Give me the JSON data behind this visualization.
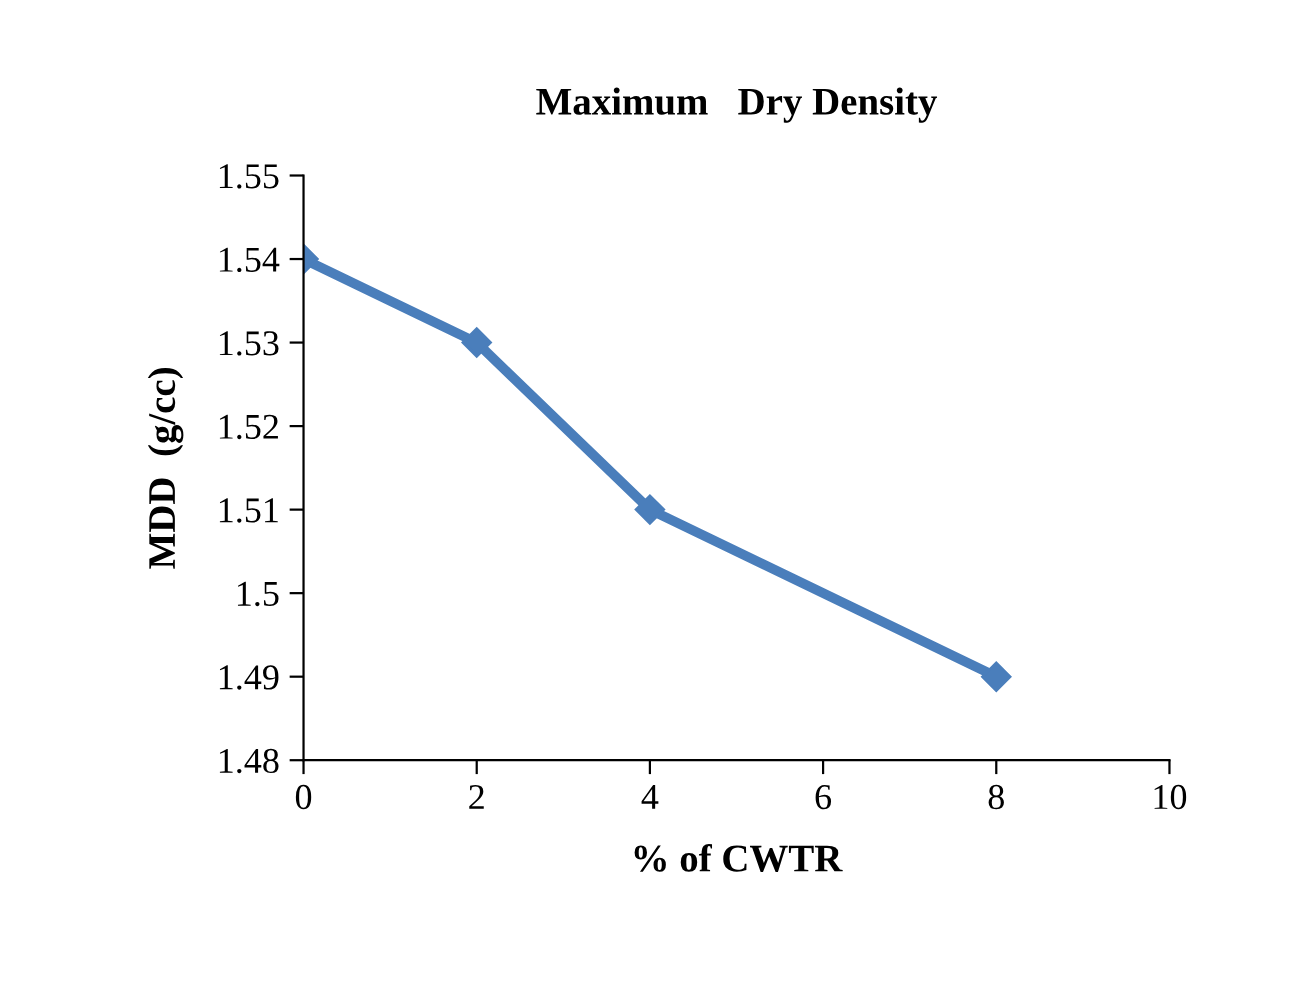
{
  "chart_data": {
    "type": "line",
    "title": "Maximum   Dry Density",
    "xlabel": "% of CWTR",
    "ylabel": "MDD  (g/cc)",
    "x": [
      0,
      2,
      4,
      8
    ],
    "series": [
      {
        "color": "#4a7ebb",
        "values": [
          1.54,
          1.53,
          1.51,
          1.49
        ]
      }
    ],
    "xlim": [
      0,
      10
    ],
    "xticks": [
      0,
      2,
      4,
      6,
      8,
      10
    ],
    "ylim": [
      1.48,
      1.55
    ],
    "yticks": [
      1.48,
      1.49,
      1.5,
      1.51,
      1.52,
      1.53,
      1.54,
      1.55
    ],
    "marker": "diamond",
    "line_style": "solid"
  }
}
